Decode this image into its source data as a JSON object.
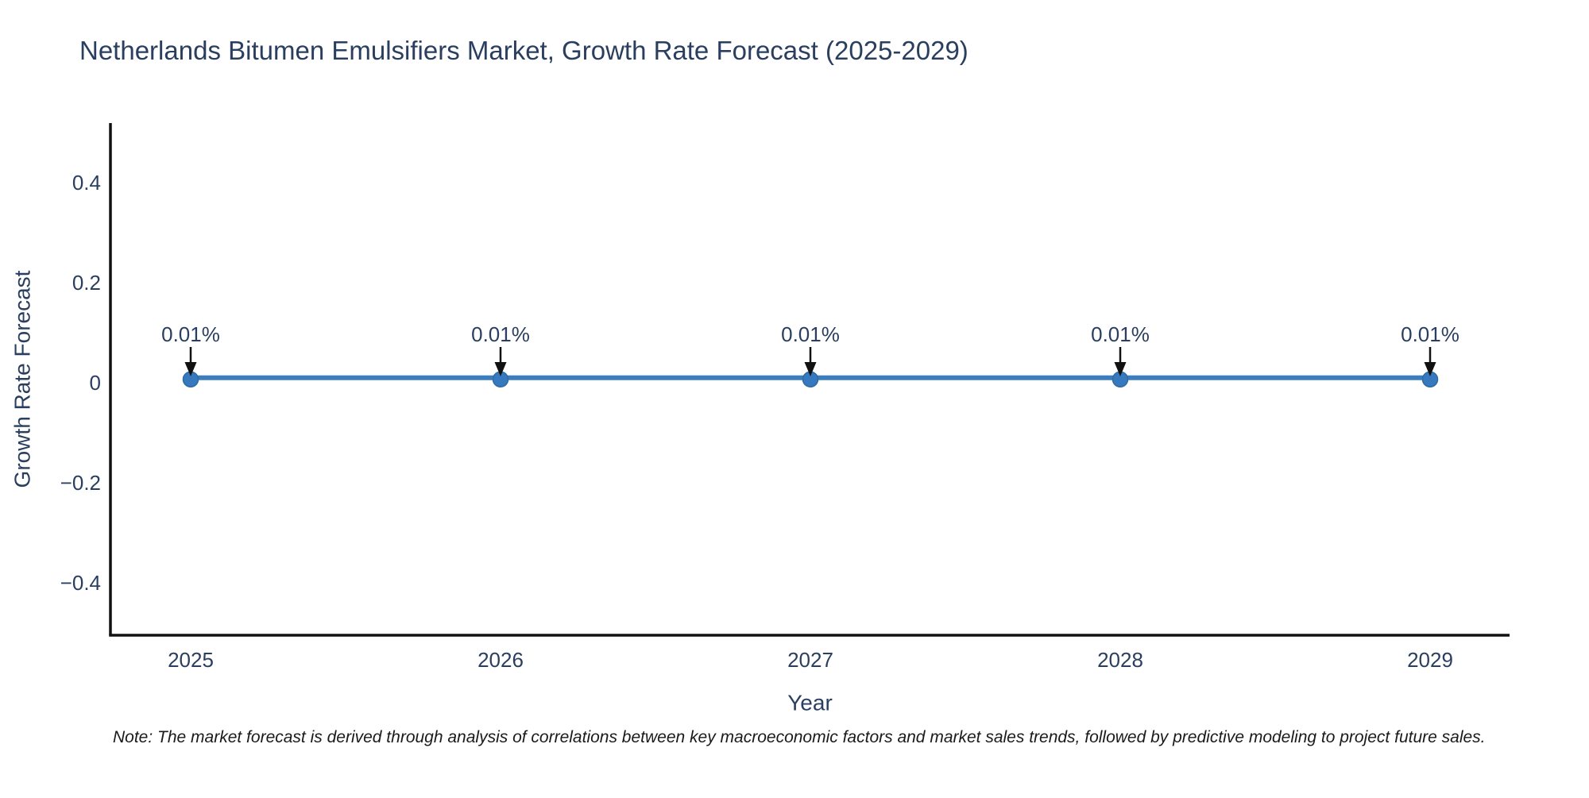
{
  "title": "Netherlands Bitumen Emulsifiers Market, Growth Rate Forecast (2025-2029)",
  "note": "Note: The market forecast is derived through analysis of correlations between key macroeconomic factors and market sales trends, followed by predictive modeling to project future sales.",
  "colors": {
    "title_text": "#2a3f5f",
    "axis_text": "#2a3f5f",
    "axis_line": "#111111",
    "series_line": "#3b7ebf",
    "marker_fill": "#3779be",
    "marker_stroke": "#2f6ba3",
    "arrow": "#111111",
    "background": "#ffffff"
  },
  "chart_data": {
    "type": "line",
    "title": "Netherlands Bitumen Emulsifiers Market, Growth Rate Forecast (2025-2029)",
    "xlabel": "Year",
    "ylabel": "Growth Rate Forecast",
    "x": [
      2025,
      2026,
      2027,
      2028,
      2029
    ],
    "series": [
      {
        "name": "Growth Rate Forecast",
        "values": [
          0.01,
          0.01,
          0.01,
          0.01,
          0.01
        ]
      }
    ],
    "point_labels": [
      "0.01%",
      "0.01%",
      "0.01%",
      "0.01%",
      "0.01%"
    ],
    "annotations_arrow": true,
    "xticks": [
      "2025",
      "2026",
      "2027",
      "2028",
      "2029"
    ],
    "yticks": [
      0.4,
      0.2,
      0,
      -0.2,
      -0.4
    ],
    "ytick_labels": [
      "0.4",
      "0.2",
      "0",
      "−0.2",
      "−0.4"
    ],
    "ylim": [
      -0.5,
      0.52
    ],
    "grid": false,
    "legend": "none"
  }
}
